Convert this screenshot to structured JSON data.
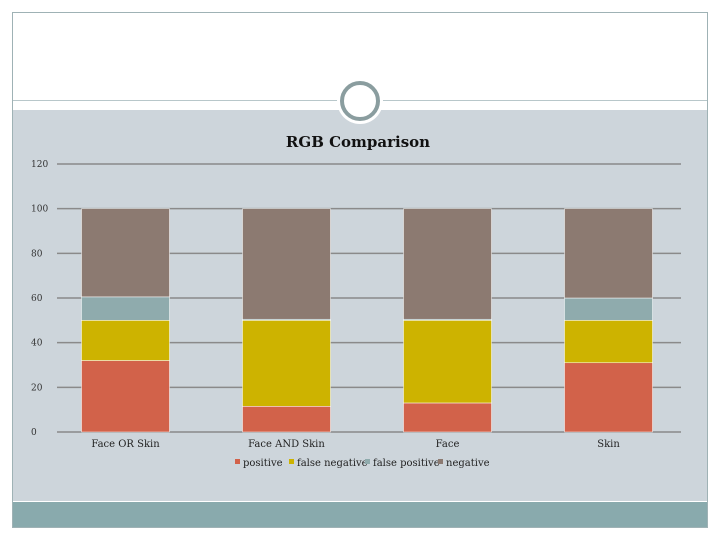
{
  "colors": {
    "positive": "#d2624a",
    "false_negative": "#cdb300",
    "false_positive": "#8fabad",
    "negative": "#8c7a71",
    "content_background": "#cdd5db",
    "footer_band": "#89aaad"
  },
  "chart_data": {
    "type": "bar",
    "stacked": true,
    "title": "RGB Comparison",
    "xlabel": "",
    "ylabel": "",
    "ylim": [
      0,
      120
    ],
    "yticks": [
      0,
      20,
      40,
      60,
      80,
      100,
      120
    ],
    "grid": true,
    "legend_position": "bottom",
    "categories": [
      "Face OR Skin",
      "Face AND Skin",
      "Face",
      "Skin"
    ],
    "series": [
      {
        "name": "positive",
        "color": "#d2624a",
        "values": [
          32,
          11.5,
          13,
          31
        ]
      },
      {
        "name": "false negative",
        "color": "#cdb300",
        "values": [
          18,
          38.5,
          37,
          19
        ]
      },
      {
        "name": "false positive",
        "color": "#8fabad",
        "values": [
          10.5,
          0.5,
          0.5,
          10
        ]
      },
      {
        "name": "negative",
        "color": "#8c7a71",
        "values": [
          39.5,
          49.5,
          49.5,
          40
        ]
      }
    ]
  }
}
